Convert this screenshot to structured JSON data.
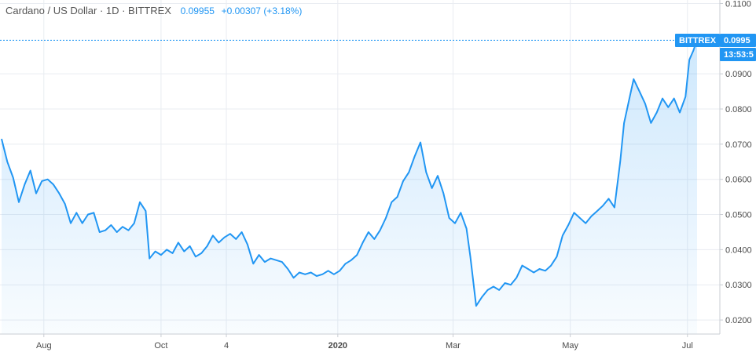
{
  "header": {
    "symbol": "Cardano / US Dollar · 1D · BITTREX",
    "last": "0.09955",
    "change": "+0.00307 (+3.18%)"
  },
  "price_label": {
    "exchange": "BITTREX",
    "price": "0.0995",
    "countdown": "13:53:5"
  },
  "colors": {
    "line": "#2196f3",
    "fill": "#2196f3",
    "grid": "#e9ecf1",
    "tag": "#2196f3"
  },
  "chart_data": {
    "type": "area",
    "title": "Cardano / US Dollar · 1D · BITTREX",
    "xlabel": "",
    "ylabel": "",
    "ylim": [
      0.016,
      0.111
    ],
    "grid": true,
    "x_ticks": [
      "Aug",
      "Oct",
      "4",
      "2020",
      "Mar",
      "May",
      "Jul"
    ],
    "y_ticks": [
      "0.1100",
      "0.0900",
      "0.0800",
      "0.0700",
      "0.0600",
      "0.0500",
      "0.0400",
      "0.0300",
      "0.0200"
    ],
    "last_price": 0.09955,
    "x_range": [
      "2019-07-10",
      "2020-07-06"
    ],
    "series": [
      {
        "points": [
          [
            "2019-07-10",
            0.0715
          ],
          [
            "2019-07-13",
            0.065
          ],
          [
            "2019-07-16",
            0.0605
          ],
          [
            "2019-07-19",
            0.0535
          ],
          [
            "2019-07-22",
            0.0585
          ],
          [
            "2019-07-25",
            0.0625
          ],
          [
            "2019-07-28",
            0.056
          ],
          [
            "2019-07-31",
            0.0595
          ],
          [
            "2019-08-03",
            0.06
          ],
          [
            "2019-08-06",
            0.0585
          ],
          [
            "2019-08-09",
            0.056
          ],
          [
            "2019-08-12",
            0.053
          ],
          [
            "2019-08-15",
            0.0475
          ],
          [
            "2019-08-18",
            0.0505
          ],
          [
            "2019-08-21",
            0.0475
          ],
          [
            "2019-08-24",
            0.05
          ],
          [
            "2019-08-27",
            0.0505
          ],
          [
            "2019-08-30",
            0.045
          ],
          [
            "2019-09-02",
            0.0455
          ],
          [
            "2019-09-05",
            0.047
          ],
          [
            "2019-09-08",
            0.045
          ],
          [
            "2019-09-11",
            0.0465
          ],
          [
            "2019-09-14",
            0.0455
          ],
          [
            "2019-09-17",
            0.0475
          ],
          [
            "2019-09-20",
            0.0535
          ],
          [
            "2019-09-23",
            0.051
          ],
          [
            "2019-09-25",
            0.0375
          ],
          [
            "2019-09-28",
            0.0395
          ],
          [
            "2019-10-01",
            0.0385
          ],
          [
            "2019-10-04",
            0.04
          ],
          [
            "2019-10-07",
            0.039
          ],
          [
            "2019-10-10",
            0.042
          ],
          [
            "2019-10-13",
            0.0395
          ],
          [
            "2019-10-16",
            0.041
          ],
          [
            "2019-10-19",
            0.038
          ],
          [
            "2019-10-22",
            0.039
          ],
          [
            "2019-10-25",
            0.041
          ],
          [
            "2019-10-28",
            0.044
          ],
          [
            "2019-10-31",
            0.042
          ],
          [
            "2019-11-03",
            0.0435
          ],
          [
            "2019-11-06",
            0.0445
          ],
          [
            "2019-11-09",
            0.043
          ],
          [
            "2019-11-12",
            0.045
          ],
          [
            "2019-11-15",
            0.0415
          ],
          [
            "2019-11-18",
            0.036
          ],
          [
            "2019-11-21",
            0.0385
          ],
          [
            "2019-11-24",
            0.0365
          ],
          [
            "2019-11-27",
            0.0375
          ],
          [
            "2019-11-30",
            0.037
          ],
          [
            "2019-12-03",
            0.0365
          ],
          [
            "2019-12-06",
            0.0345
          ],
          [
            "2019-12-09",
            0.032
          ],
          [
            "2019-12-12",
            0.0335
          ],
          [
            "2019-12-15",
            0.033
          ],
          [
            "2019-12-18",
            0.0335
          ],
          [
            "2019-12-21",
            0.0325
          ],
          [
            "2019-12-24",
            0.033
          ],
          [
            "2019-12-27",
            0.034
          ],
          [
            "2019-12-30",
            0.033
          ],
          [
            "2020-01-02",
            0.034
          ],
          [
            "2020-01-05",
            0.036
          ],
          [
            "2020-01-08",
            0.037
          ],
          [
            "2020-01-11",
            0.0385
          ],
          [
            "2020-01-14",
            0.042
          ],
          [
            "2020-01-17",
            0.045
          ],
          [
            "2020-01-20",
            0.043
          ],
          [
            "2020-01-23",
            0.0455
          ],
          [
            "2020-01-26",
            0.049
          ],
          [
            "2020-01-29",
            0.0535
          ],
          [
            "2020-02-01",
            0.055
          ],
          [
            "2020-02-04",
            0.0595
          ],
          [
            "2020-02-07",
            0.062
          ],
          [
            "2020-02-10",
            0.0665
          ],
          [
            "2020-02-13",
            0.0705
          ],
          [
            "2020-02-16",
            0.062
          ],
          [
            "2020-02-19",
            0.0575
          ],
          [
            "2020-02-22",
            0.061
          ],
          [
            "2020-02-25",
            0.056
          ],
          [
            "2020-02-28",
            0.049
          ],
          [
            "2020-03-02",
            0.0475
          ],
          [
            "2020-03-05",
            0.0505
          ],
          [
            "2020-03-08",
            0.046
          ],
          [
            "2020-03-10",
            0.038
          ],
          [
            "2020-03-13",
            0.024
          ],
          [
            "2020-03-16",
            0.0265
          ],
          [
            "2020-03-19",
            0.0285
          ],
          [
            "2020-03-22",
            0.0295
          ],
          [
            "2020-03-25",
            0.0285
          ],
          [
            "2020-03-28",
            0.0305
          ],
          [
            "2020-03-31",
            0.03
          ],
          [
            "2020-04-03",
            0.032
          ],
          [
            "2020-04-06",
            0.0355
          ],
          [
            "2020-04-09",
            0.0345
          ],
          [
            "2020-04-12",
            0.0335
          ],
          [
            "2020-04-15",
            0.0345
          ],
          [
            "2020-04-18",
            0.034
          ],
          [
            "2020-04-21",
            0.0355
          ],
          [
            "2020-04-24",
            0.038
          ],
          [
            "2020-04-27",
            0.044
          ],
          [
            "2020-04-30",
            0.047
          ],
          [
            "2020-05-03",
            0.0505
          ],
          [
            "2020-05-06",
            0.049
          ],
          [
            "2020-05-09",
            0.0475
          ],
          [
            "2020-05-12",
            0.0495
          ],
          [
            "2020-05-15",
            0.051
          ],
          [
            "2020-05-18",
            0.0525
          ],
          [
            "2020-05-21",
            0.0545
          ],
          [
            "2020-05-24",
            0.052
          ],
          [
            "2020-05-27",
            0.065
          ],
          [
            "2020-05-29",
            0.076
          ],
          [
            "2020-06-01",
            0.0835
          ],
          [
            "2020-06-03",
            0.0885
          ],
          [
            "2020-06-06",
            0.085
          ],
          [
            "2020-06-09",
            0.0815
          ],
          [
            "2020-06-12",
            0.076
          ],
          [
            "2020-06-15",
            0.079
          ],
          [
            "2020-06-18",
            0.083
          ],
          [
            "2020-06-21",
            0.0805
          ],
          [
            "2020-06-24",
            0.083
          ],
          [
            "2020-06-27",
            0.079
          ],
          [
            "2020-06-30",
            0.0835
          ],
          [
            "2020-07-02",
            0.094
          ],
          [
            "2020-07-04",
            0.0965
          ],
          [
            "2020-07-06",
            0.09955
          ]
        ]
      }
    ]
  }
}
